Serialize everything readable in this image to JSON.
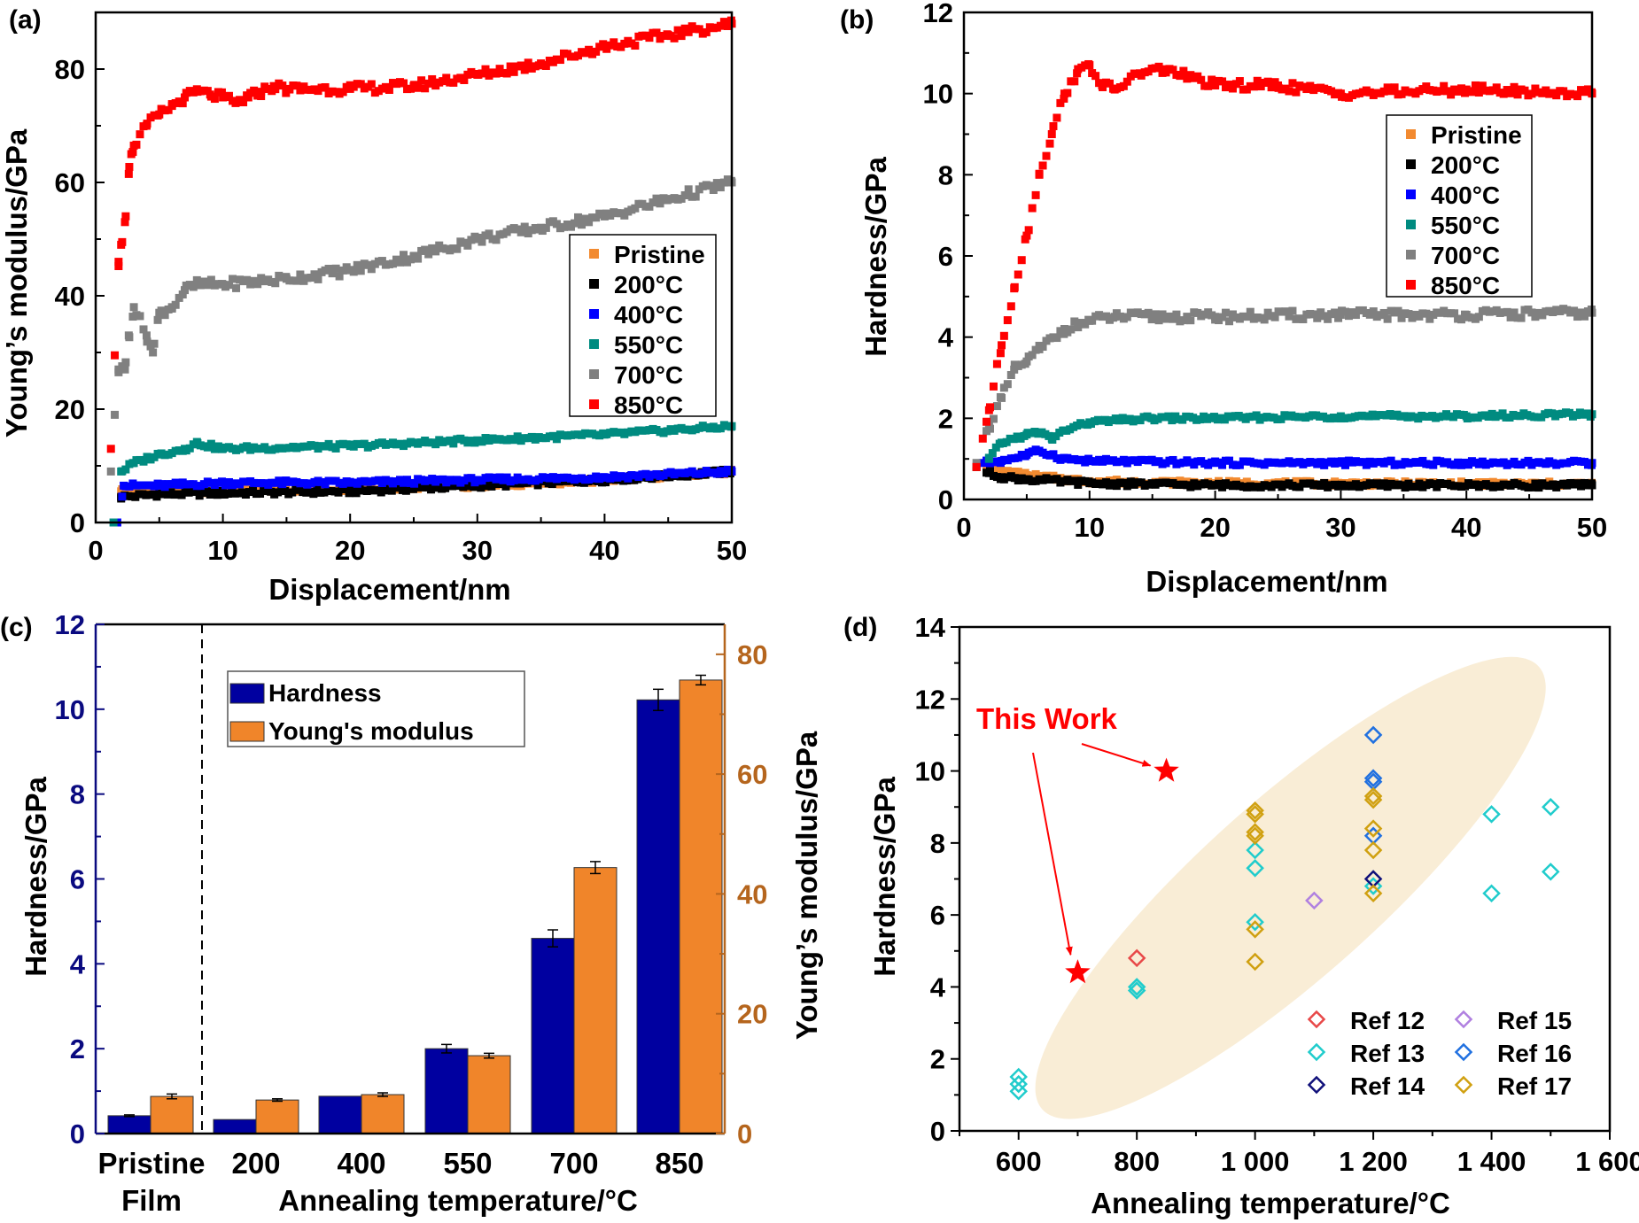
{
  "chart_data": [
    {
      "panel_label": "(a)",
      "type": "scatter",
      "xlabel": "Displacement/nm",
      "ylabel": "Young’s modulus/GPa",
      "xlim": [
        0,
        50
      ],
      "ylim": [
        0,
        90
      ],
      "xticks": [
        0,
        10,
        20,
        30,
        40,
        50
      ],
      "yticks": [
        0,
        20,
        40,
        60,
        80
      ],
      "legend_placement": "center-right",
      "series": [
        {
          "name": "Pristine",
          "color": "#f28a30",
          "points": [
            [
              1.6,
              0
            ],
            [
              2,
              5.5
            ],
            [
              5,
              5.5
            ],
            [
              10,
              5.5
            ],
            [
              20,
              6
            ],
            [
              30,
              6.5
            ],
            [
              40,
              7.5
            ],
            [
              50,
              9
            ]
          ]
        },
        {
          "name": "200°C",
          "color": "#000000",
          "points": [
            [
              2,
              4.5
            ],
            [
              5,
              5
            ],
            [
              10,
              5.2
            ],
            [
              20,
              5.5
            ],
            [
              30,
              6.5
            ],
            [
              40,
              7.5
            ],
            [
              50,
              9
            ]
          ]
        },
        {
          "name": "400°C",
          "color": "#0000ff",
          "points": [
            [
              1.7,
              0
            ],
            [
              2.2,
              6.5
            ],
            [
              5,
              6.5
            ],
            [
              10,
              7
            ],
            [
              20,
              7
            ],
            [
              30,
              7.5
            ],
            [
              40,
              8
            ],
            [
              50,
              9
            ]
          ]
        },
        {
          "name": "550°C",
          "color": "#008b80",
          "points": [
            [
              1.4,
              0
            ],
            [
              2,
              9
            ],
            [
              3,
              10.5
            ],
            [
              5,
              12
            ],
            [
              7,
              13
            ],
            [
              8,
              14
            ],
            [
              10,
              13
            ],
            [
              20,
              13.5
            ],
            [
              30,
              14.5
            ],
            [
              40,
              15.5
            ],
            [
              50,
              17
            ]
          ]
        },
        {
          "name": "700°C",
          "color": "#808080",
          "points": [
            [
              1.2,
              9
            ],
            [
              1.5,
              19
            ],
            [
              1.8,
              27
            ],
            [
              2.3,
              27
            ],
            [
              2.6,
              33
            ],
            [
              3,
              38
            ],
            [
              4,
              33
            ],
            [
              4.5,
              30
            ],
            [
              5,
              37
            ],
            [
              6,
              38
            ],
            [
              7,
              41
            ],
            [
              8,
              42
            ],
            [
              10,
              42
            ],
            [
              15,
              43
            ],
            [
              20,
              44.5
            ],
            [
              25,
              47
            ],
            [
              30,
              50
            ],
            [
              35,
              52
            ],
            [
              40,
              54
            ],
            [
              45,
              57
            ],
            [
              50,
              60
            ]
          ]
        },
        {
          "name": "850°C",
          "color": "#ff0000",
          "points": [
            [
              1.2,
              13
            ],
            [
              1.5,
              29.5
            ],
            [
              1.8,
              46
            ],
            [
              2,
              49
            ],
            [
              2.3,
              53
            ],
            [
              2.6,
              61.5
            ],
            [
              2.8,
              65
            ],
            [
              3,
              66.5
            ],
            [
              4,
              70
            ],
            [
              5,
              72
            ],
            [
              6,
              73.5
            ],
            [
              7,
              75
            ],
            [
              8,
              76
            ],
            [
              9,
              75.5
            ],
            [
              10,
              75
            ],
            [
              11,
              74
            ],
            [
              12,
              75
            ],
            [
              13,
              76
            ],
            [
              14,
              77
            ],
            [
              15,
              76.5
            ],
            [
              20,
              76.5
            ],
            [
              25,
              77
            ],
            [
              30,
              79
            ],
            [
              35,
              81
            ],
            [
              40,
              84
            ],
            [
              45,
              86
            ],
            [
              50,
              88
            ]
          ]
        }
      ]
    },
    {
      "panel_label": "(b)",
      "type": "scatter",
      "xlabel": "Displacement/nm",
      "ylabel": "Hardness/GPa",
      "xlim": [
        0,
        50
      ],
      "ylim": [
        0,
        12
      ],
      "xticks": [
        0,
        10,
        20,
        30,
        40,
        50
      ],
      "yticks": [
        0,
        2,
        4,
        6,
        8,
        10,
        12
      ],
      "legend_placement": "upper-right",
      "series": [
        {
          "name": "Pristine",
          "color": "#f28a30",
          "points": [
            [
              1,
              0.8
            ],
            [
              2,
              0.75
            ],
            [
              3,
              0.7
            ],
            [
              5,
              0.6
            ],
            [
              8,
              0.5
            ],
            [
              10,
              0.45
            ],
            [
              20,
              0.4
            ],
            [
              50,
              0.38
            ]
          ]
        },
        {
          "name": "200°C",
          "color": "#000000",
          "points": [
            [
              1,
              0.8
            ],
            [
              2,
              0.65
            ],
            [
              3,
              0.55
            ],
            [
              5,
              0.5
            ],
            [
              10,
              0.4
            ],
            [
              20,
              0.35
            ],
            [
              50,
              0.35
            ]
          ]
        },
        {
          "name": "400°C",
          "color": "#0000ff",
          "points": [
            [
              1.5,
              0.9
            ],
            [
              3,
              0.95
            ],
            [
              5,
              1.1
            ],
            [
              6,
              1.2
            ],
            [
              8,
              1.0
            ],
            [
              10,
              0.95
            ],
            [
              20,
              0.9
            ],
            [
              30,
              0.9
            ],
            [
              50,
              0.9
            ]
          ]
        },
        {
          "name": "550°C",
          "color": "#008b80",
          "points": [
            [
              2,
              1.0
            ],
            [
              3,
              1.4
            ],
            [
              5,
              1.6
            ],
            [
              6,
              1.65
            ],
            [
              7,
              1.5
            ],
            [
              8,
              1.7
            ],
            [
              10,
              1.9
            ],
            [
              15,
              2.0
            ],
            [
              20,
              2.0
            ],
            [
              30,
              2.05
            ],
            [
              40,
              2.05
            ],
            [
              50,
              2.1
            ]
          ]
        },
        {
          "name": "700°C",
          "color": "#808080",
          "points": [
            [
              1,
              0.9
            ],
            [
              2,
              1.8
            ],
            [
              3,
              2.5
            ],
            [
              4,
              3.2
            ],
            [
              5,
              3.4
            ],
            [
              6,
              3.7
            ],
            [
              8,
              4.2
            ],
            [
              10,
              4.4
            ],
            [
              12,
              4.5
            ],
            [
              20,
              4.5
            ],
            [
              30,
              4.55
            ],
            [
              40,
              4.55
            ],
            [
              50,
              4.6
            ]
          ]
        },
        {
          "name": "850°C",
          "color": "#ff0000",
          "points": [
            [
              1,
              0.8
            ],
            [
              1.5,
              1.5
            ],
            [
              2,
              2.2
            ],
            [
              3,
              3.8
            ],
            [
              4,
              5.2
            ],
            [
              5,
              6.5
            ],
            [
              6,
              8
            ],
            [
              7,
              9
            ],
            [
              8,
              10
            ],
            [
              9,
              10.5
            ],
            [
              10,
              10.7
            ],
            [
              11,
              10.2
            ],
            [
              12,
              10.1
            ],
            [
              14,
              10.5
            ],
            [
              16,
              10.6
            ],
            [
              18,
              10.4
            ],
            [
              20,
              10.2
            ],
            [
              25,
              10.2
            ],
            [
              30,
              10
            ],
            [
              40,
              10.1
            ],
            [
              50,
              10
            ]
          ]
        }
      ]
    },
    {
      "panel_label": "(c)",
      "type": "bar",
      "xlabel": "Annealing temperature/°C",
      "ylabel": "Hardness/GPa",
      "ylabel_right": "Young’s modulus/GPa",
      "ylim": [
        0,
        12
      ],
      "ylim_right": [
        0,
        85
      ],
      "yticks": [
        0,
        2,
        4,
        6,
        8,
        10,
        12
      ],
      "yticks_right": [
        0,
        20,
        40,
        60,
        80
      ],
      "left_axis_color": "#0a0a80",
      "right_axis_color": "#b5651d",
      "categories": [
        [
          "Pristine",
          "Film"
        ],
        [
          "200"
        ],
        [
          "400"
        ],
        [
          "550"
        ],
        [
          "700"
        ],
        [
          "850"
        ]
      ],
      "legend_placement": "upper-left",
      "series": [
        {
          "name": "Hardness",
          "axis": "left",
          "color": "#0000a0",
          "values": [
            0.42,
            0.33,
            0.88,
            2.0,
            4.6,
            10.22
          ],
          "errors": [
            0.02,
            0.0,
            0.0,
            0.1,
            0.2,
            0.25
          ]
        },
        {
          "name": "Young's modulus",
          "axis": "right",
          "color": "#f0852a",
          "values": [
            6.2,
            5.6,
            6.5,
            13.0,
            44.4,
            75.7
          ],
          "errors": [
            0.4,
            0.2,
            0.3,
            0.4,
            1.0,
            0.8
          ]
        }
      ]
    },
    {
      "panel_label": "(d)",
      "type": "scatter",
      "xlabel": "Annealing temperature/°C",
      "ylabel": "Hardness/GPa",
      "xlim": [
        500,
        1600
      ],
      "ylim": [
        0,
        14
      ],
      "xticks": [
        600,
        800,
        1000,
        1200,
        1400,
        1600
      ],
      "xtick_labels": [
        "600",
        "800",
        "1 000",
        "1 200",
        "1 400",
        "1 600"
      ],
      "yticks": [
        0,
        2,
        4,
        6,
        8,
        10,
        12,
        14
      ],
      "legend_placement": "lower-right",
      "highlight_color": "#f9edd6",
      "annotation": {
        "text": "This Work",
        "color": "#ff0000"
      },
      "this_work": [
        [
          700,
          4.4
        ],
        [
          850,
          10.0
        ]
      ],
      "series": [
        {
          "name": "Ref 12",
          "color": "#e84848",
          "points": [
            [
              800,
              4.8
            ]
          ]
        },
        {
          "name": "Ref 13",
          "color": "#20cccc",
          "points": [
            [
              600,
              1.5
            ],
            [
              600,
              1.3
            ],
            [
              600,
              1.1
            ],
            [
              800,
              4.0
            ],
            [
              800,
              3.9
            ],
            [
              1000,
              7.8
            ],
            [
              1000,
              7.3
            ],
            [
              1000,
              5.8
            ],
            [
              1200,
              6.8
            ],
            [
              1400,
              8.8
            ],
            [
              1400,
              6.6
            ],
            [
              1500,
              9.0
            ],
            [
              1500,
              7.2
            ]
          ]
        },
        {
          "name": "Ref 14",
          "color": "#10107a",
          "points": [
            [
              1200,
              7.0
            ]
          ]
        },
        {
          "name": "Ref 15",
          "color": "#b080e0",
          "points": [
            [
              1100,
              6.4
            ]
          ]
        },
        {
          "name": "Ref 16",
          "color": "#2070e0",
          "points": [
            [
              1200,
              11.0
            ],
            [
              1200,
              9.8
            ],
            [
              1200,
              9.7
            ],
            [
              1200,
              8.2
            ]
          ]
        },
        {
          "name": "Ref 17",
          "color": "#d0a010",
          "points": [
            [
              1000,
              8.9
            ],
            [
              1000,
              8.8
            ],
            [
              1000,
              8.3
            ],
            [
              1000,
              8.2
            ],
            [
              1000,
              5.6
            ],
            [
              1000,
              4.7
            ],
            [
              1200,
              9.3
            ],
            [
              1200,
              9.2
            ],
            [
              1200,
              8.4
            ],
            [
              1200,
              7.8
            ],
            [
              1200,
              6.6
            ]
          ]
        }
      ]
    }
  ]
}
